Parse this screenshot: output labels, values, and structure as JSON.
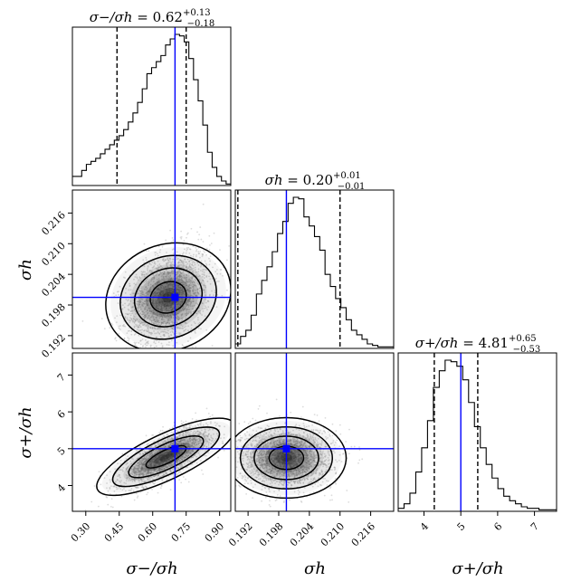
{
  "chart_data": {
    "type": "corner",
    "parameters": [
      "σ−/σh",
      "σh",
      "σ+/σh"
    ],
    "axis_labels": {
      "x": [
        "σ−/σh",
        "σh",
        "σ+/σh"
      ],
      "y": [
        "σh",
        "σ+/σh"
      ]
    },
    "titles": [
      {
        "param": "σ−/σh",
        "median": "0.62",
        "plus": "+0.13",
        "minus": "−0.18"
      },
      {
        "param": "σh",
        "median": "0.20",
        "plus": "+0.01",
        "minus": "−0.01"
      },
      {
        "param": "σ+/σh",
        "median": "4.81",
        "plus": "+0.65",
        "minus": "−0.53"
      }
    ],
    "ranges": {
      "p0": [
        0.24,
        0.95
      ],
      "p1": [
        0.1895,
        0.2205
      ],
      "p2": [
        3.3,
        7.6
      ]
    },
    "ticks": {
      "p0": [
        "0.30",
        "0.45",
        "0.60",
        "0.75",
        "0.90"
      ],
      "p1": [
        "0.192",
        "0.198",
        "0.204",
        "0.210",
        "0.216"
      ],
      "p2": [
        "4",
        "5",
        "6",
        "7"
      ]
    },
    "truths": {
      "p0": 0.7,
      "p1": 0.1995,
      "p2": 5.0
    },
    "quantiles": {
      "p0": [
        0.44,
        0.62,
        0.75
      ],
      "p1": [
        0.19,
        0.2,
        0.21
      ],
      "p2": [
        4.28,
        4.81,
        5.46
      ]
    },
    "hist_1d": {
      "p0": [
        0.06,
        0.06,
        0.1,
        0.14,
        0.16,
        0.18,
        0.21,
        0.24,
        0.27,
        0.3,
        0.33,
        0.37,
        0.42,
        0.48,
        0.55,
        0.64,
        0.74,
        0.78,
        0.82,
        0.86,
        0.93,
        0.97,
        1.0,
        0.99,
        0.95,
        0.84,
        0.7,
        0.56,
        0.4,
        0.22,
        0.12,
        0.06,
        0.03,
        0.01
      ],
      "p1": [
        0.03,
        0.08,
        0.12,
        0.22,
        0.36,
        0.45,
        0.54,
        0.64,
        0.76,
        0.84,
        0.96,
        1.0,
        0.99,
        0.87,
        0.81,
        0.74,
        0.65,
        0.49,
        0.41,
        0.33,
        0.27,
        0.19,
        0.12,
        0.09,
        0.06,
        0.03,
        0.02,
        0.01,
        0.01,
        0.01
      ],
      "p2": [
        0.02,
        0.05,
        0.12,
        0.26,
        0.42,
        0.6,
        0.82,
        0.93,
        1.0,
        0.99,
        0.96,
        0.87,
        0.72,
        0.56,
        0.42,
        0.31,
        0.22,
        0.15,
        0.1,
        0.07,
        0.05,
        0.03,
        0.02,
        0.02,
        0.01,
        0.01,
        0.01
      ]
    },
    "samples_2d": [
      {
        "x": "p0",
        "y": "p1",
        "mean": [
          0.67,
          0.1995
        ],
        "sd": [
          0.095,
          0.0048
        ],
        "rho": 0.35
      },
      {
        "x": "p0",
        "y": "p2",
        "mean": [
          0.66,
          4.78
        ],
        "sd": [
          0.1,
          0.4
        ],
        "rho": 0.72
      },
      {
        "x": "p1",
        "y": "p2",
        "mean": [
          0.1995,
          4.75
        ],
        "sd": [
          0.0045,
          0.42
        ],
        "rho": 0.0
      }
    ],
    "contour_levels": [
      0.12,
      0.39,
      0.68,
      0.86
    ],
    "colors": {
      "truth": "#0000ff",
      "hist": "#000000",
      "points": "#9a9a9a",
      "density": "#111111"
    }
  }
}
